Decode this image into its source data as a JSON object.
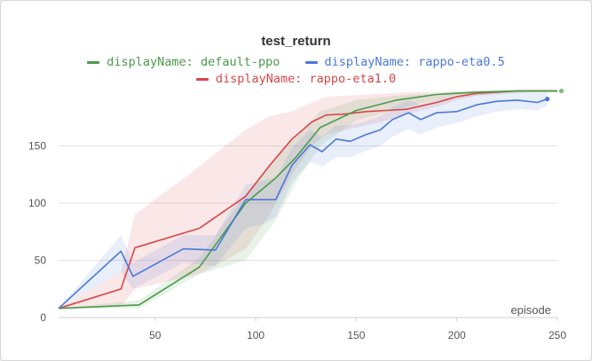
{
  "chart_data": {
    "type": "line",
    "title": "test_return",
    "xlabel": "episode",
    "ylabel": "",
    "xlim": [
      2,
      250
    ],
    "ylim": [
      0,
      200
    ],
    "xticks": [
      50,
      100,
      150,
      200,
      250
    ],
    "yticks": [
      0,
      50,
      100,
      150
    ],
    "grid": "horizontal",
    "legend_position": "top-center",
    "series": [
      {
        "name": "displayName: default-ppo",
        "label": "displayName: default-ppo",
        "color": "#4a9a4a",
        "x": [
          2,
          42,
          72,
          95,
          110,
          120,
          132,
          150,
          170,
          190,
          210,
          230,
          250
        ],
        "y": [
          8,
          11,
          44,
          100,
          122,
          140,
          166,
          181,
          190,
          195,
          197,
          198,
          198
        ],
        "band_lower": [
          8,
          8,
          38,
          50,
          85,
          118,
          150,
          172,
          182,
          190,
          194,
          196,
          197
        ],
        "band_upper": [
          8,
          15,
          52,
          108,
          140,
          158,
          180,
          190,
          194,
          196,
          198,
          199,
          199
        ],
        "end_marker": {
          "x": 252,
          "y": 198
        }
      },
      {
        "name": "displayName: rappo-eta0.5",
        "label": "displayName: rappo-eta0.5",
        "color": "#4a78d8",
        "x": [
          2,
          33,
          39,
          64,
          80,
          95,
          104,
          110,
          118,
          127,
          133,
          140,
          147,
          155,
          162,
          168,
          176,
          182,
          190,
          200,
          210,
          220,
          230,
          240,
          245
        ],
        "y": [
          8,
          58,
          36,
          60,
          59,
          103,
          103,
          103,
          133,
          151,
          145,
          156,
          154,
          160,
          164,
          173,
          179,
          173,
          179,
          180,
          186,
          189,
          190,
          188,
          191
        ],
        "band_lower": [
          8,
          40,
          25,
          48,
          45,
          78,
          82,
          88,
          118,
          136,
          132,
          140,
          140,
          146,
          150,
          158,
          165,
          160,
          166,
          170,
          176,
          180,
          182,
          181,
          185
        ],
        "band_upper": [
          8,
          72,
          48,
          72,
          72,
          116,
          120,
          122,
          148,
          164,
          158,
          168,
          168,
          172,
          176,
          184,
          190,
          186,
          190,
          192,
          195,
          197,
          197,
          196,
          197
        ],
        "end_marker": {
          "x": 245,
          "y": 191
        }
      },
      {
        "name": "displayName: rappo-eta1.0",
        "label": "displayName: rappo-eta1.0",
        "color": "#d8474a",
        "x": [
          2,
          33,
          40,
          72,
          95,
          107,
          118,
          128,
          135,
          145,
          155,
          165,
          175,
          190,
          200,
          210,
          220,
          230,
          240,
          250
        ],
        "y": [
          8,
          25,
          61,
          78,
          106,
          133,
          156,
          171,
          177,
          178,
          180,
          181,
          182,
          188,
          193,
          196,
          197,
          198,
          198,
          198
        ],
        "band_lower": [
          8,
          10,
          25,
          38,
          60,
          90,
          125,
          150,
          160,
          164,
          168,
          172,
          178,
          184,
          190,
          194,
          196,
          197,
          197,
          198
        ],
        "band_upper": [
          8,
          40,
          90,
          132,
          164,
          176,
          180,
          188,
          193,
          194,
          195,
          196,
          197,
          197,
          198,
          198,
          198,
          198,
          199,
          199
        ]
      }
    ]
  }
}
